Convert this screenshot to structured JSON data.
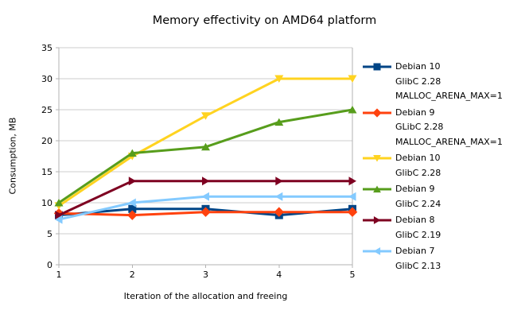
{
  "title": "Memory effectivity on AMD64 platform",
  "chart_data": {
    "type": "line",
    "title": "Memory effectivity on AMD64 platform",
    "xlabel": "Iteration of the allocation and freeing",
    "ylabel": "Consumption, MB",
    "x": [
      1,
      2,
      3,
      4,
      5
    ],
    "xlim": [
      1,
      5
    ],
    "ylim": [
      0,
      35
    ],
    "y_tick_step": 5,
    "grid": "horizontal",
    "legend_position": "right",
    "background_color": "#ffffff",
    "axis_color": "#b3b3b3",
    "grid_color": "#cccccc",
    "text_color": "#000000",
    "series": [
      {
        "name": "Debian 10 GlibC 2.28 MALLOC_ARENA_MAX=1",
        "label_lines": [
          "Debian 10",
          "GlibC 2.28",
          "MALLOC_ARENA_MAX=1"
        ],
        "color": "#004586",
        "marker": "square",
        "values": [
          8,
          9,
          9,
          8,
          9
        ]
      },
      {
        "name": "Debian 9 GLibC 2.28 MALLOC_ARENA_MAX=1",
        "label_lines": [
          "Debian 9",
          "GLibC 2.28",
          "MALLOC_ARENA_MAX=1"
        ],
        "color": "#ff420e",
        "marker": "diamond",
        "values": [
          8.3,
          8,
          8.5,
          8.5,
          8.5
        ]
      },
      {
        "name": "Debian 10 GlibC 2.28",
        "label_lines": [
          "Debian 10",
          "GlibC 2.28"
        ],
        "color": "#ffd320",
        "marker": "triangle-down",
        "values": [
          9.5,
          17.5,
          24,
          30,
          30
        ]
      },
      {
        "name": "Debian 9 GlibC 2.24",
        "label_lines": [
          "Debian 9",
          "GlibC 2.24"
        ],
        "color": "#579d1c",
        "marker": "triangle-up",
        "values": [
          10,
          18,
          19,
          23,
          25
        ]
      },
      {
        "name": "Debian 8 GlibC 2.19",
        "label_lines": [
          "Debian 8",
          "GlibC 2.19"
        ],
        "color": "#7e0021",
        "marker": "triangle-right",
        "values": [
          8,
          13.5,
          13.5,
          13.5,
          13.5
        ]
      },
      {
        "name": "Debian 7 GlibC 2.13",
        "label_lines": [
          "Debian 7",
          "GlibC 2.13"
        ],
        "color": "#83caff",
        "marker": "triangle-left",
        "values": [
          7.3,
          10,
          11,
          11,
          11
        ]
      }
    ]
  }
}
